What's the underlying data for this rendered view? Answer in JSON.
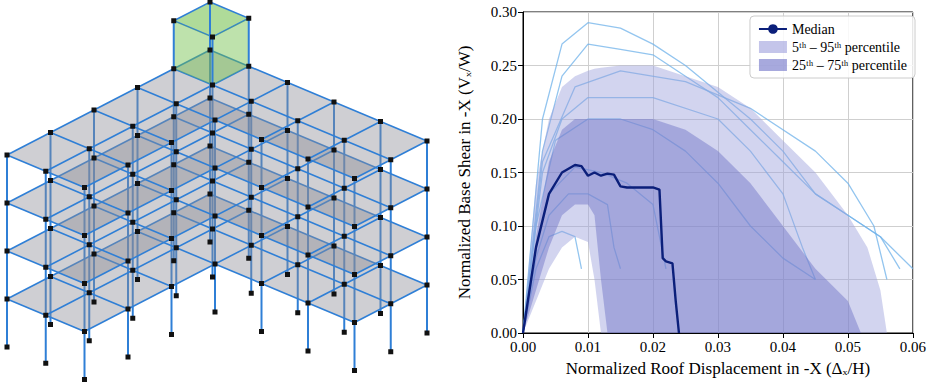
{
  "chart_data": {
    "type": "line",
    "xlabel": "Normalized Roof Displacement in -X (Δₓ/H)",
    "ylabel": "Normalized Base Shear in -X (Vₓ/W)",
    "xlim": [
      0,
      0.06
    ],
    "ylim": [
      0,
      0.3
    ],
    "xticks": [
      {
        "value": 0,
        "label": "0.00"
      },
      {
        "value": 0.01,
        "label": "0.01"
      },
      {
        "value": 0.02,
        "label": "0.02"
      },
      {
        "value": 0.03,
        "label": "0.03"
      },
      {
        "value": 0.04,
        "label": "0.04"
      },
      {
        "value": 0.05,
        "label": "0.05"
      },
      {
        "value": 0.06,
        "label": "0.06"
      }
    ],
    "yticks": [
      {
        "value": 0,
        "label": "0.00"
      },
      {
        "value": 0.05,
        "label": "0.05"
      },
      {
        "value": 0.1,
        "label": "0.10"
      },
      {
        "value": 0.15,
        "label": "0.15"
      },
      {
        "value": 0.2,
        "label": "0.20"
      },
      {
        "value": 0.25,
        "label": "0.25"
      },
      {
        "value": 0.3,
        "label": "0.30"
      }
    ],
    "grid": true,
    "legend": "upper right",
    "series": [
      {
        "name": "Median",
        "type": "line",
        "color": "#0b1f7a",
        "x": [
          0,
          0.002,
          0.004,
          0.006,
          0.008,
          0.009,
          0.01,
          0.011,
          0.012,
          0.013,
          0.014,
          0.015,
          0.016,
          0.02,
          0.021,
          0.0215,
          0.022,
          0.023,
          0.0235,
          0.024
        ],
        "values": [
          0,
          0.08,
          0.13,
          0.15,
          0.157,
          0.156,
          0.147,
          0.15,
          0.147,
          0.149,
          0.148,
          0.137,
          0.136,
          0.136,
          0.134,
          0.07,
          0.067,
          0.065,
          0.03,
          0
        ]
      },
      {
        "name": "5ᵗʰ – 95ᵗʰ percentile",
        "type": "band",
        "color": "#9c9fdc",
        "x": [
          0,
          0.002,
          0.004,
          0.006,
          0.008,
          0.01,
          0.011,
          0.012,
          0.015,
          0.02,
          0.025,
          0.03,
          0.035,
          0.04,
          0.045,
          0.05,
          0.053,
          0.055,
          0.056
        ],
        "lower": [
          0,
          0.03,
          0.06,
          0.08,
          0.09,
          0.085,
          0.05,
          0,
          0,
          0,
          0,
          0,
          0,
          0,
          0,
          0,
          0,
          0,
          0
        ],
        "upper": [
          0,
          0.14,
          0.2,
          0.23,
          0.24,
          0.245,
          0.247,
          0.248,
          0.25,
          0.25,
          0.24,
          0.23,
          0.21,
          0.18,
          0.15,
          0.11,
          0.08,
          0.04,
          0
        ]
      },
      {
        "name": "25ᵗʰ – 75ᵗʰ percentile",
        "type": "band",
        "color": "#6d70c6",
        "x": [
          0,
          0.002,
          0.004,
          0.006,
          0.008,
          0.01,
          0.011,
          0.012,
          0.013,
          0.015,
          0.02,
          0.025,
          0.03,
          0.035,
          0.04,
          0.045,
          0.05,
          0.052
        ],
        "lower": [
          0,
          0.04,
          0.08,
          0.11,
          0.12,
          0.12,
          0.11,
          0.05,
          0,
          0,
          0,
          0,
          0,
          0,
          0,
          0,
          0,
          0
        ],
        "upper": [
          0,
          0.09,
          0.16,
          0.19,
          0.2,
          0.2,
          0.2,
          0.2,
          0.2,
          0.2,
          0.2,
          0.19,
          0.17,
          0.14,
          0.1,
          0.06,
          0.03,
          0
        ]
      },
      {
        "type": "line",
        "color": "#6fb1ea",
        "x": [
          0,
          0.003,
          0.006,
          0.01,
          0.015,
          0.02,
          0.025,
          0.03,
          0.035,
          0.04,
          0.045,
          0.05,
          0.055,
          0.058
        ],
        "values": [
          0,
          0.2,
          0.27,
          0.29,
          0.285,
          0.27,
          0.25,
          0.225,
          0.2,
          0.17,
          0.13,
          0.11,
          0.09,
          0.06
        ]
      },
      {
        "type": "line",
        "color": "#6fb1ea",
        "x": [
          0,
          0.003,
          0.006,
          0.01,
          0.015,
          0.02,
          0.025,
          0.03,
          0.035,
          0.04,
          0.045,
          0.05,
          0.055,
          0.06
        ],
        "values": [
          0,
          0.17,
          0.24,
          0.27,
          0.265,
          0.26,
          0.24,
          0.22,
          0.19,
          0.16,
          0.13,
          0.11,
          0.09,
          0.06
        ]
      },
      {
        "type": "line",
        "color": "#6fb1ea",
        "x": [
          0,
          0.002,
          0.005,
          0.01,
          0.015,
          0.02,
          0.025,
          0.03,
          0.035,
          0.04,
          0.045
        ],
        "values": [
          0,
          0.1,
          0.18,
          0.2,
          0.2,
          0.19,
          0.17,
          0.14,
          0.1,
          0.07,
          0.05
        ]
      },
      {
        "type": "line",
        "color": "#6fb1ea",
        "x": [
          0,
          0.002,
          0.004,
          0.008,
          0.012,
          0.016,
          0.02,
          0.022
        ],
        "values": [
          0,
          0.08,
          0.13,
          0.155,
          0.15,
          0.14,
          0.12,
          0.06
        ]
      },
      {
        "type": "line",
        "color": "#6fb1ea",
        "x": [
          0,
          0.002,
          0.004,
          0.006,
          0.008,
          0.009
        ],
        "values": [
          0,
          0.06,
          0.09,
          0.095,
          0.09,
          0.06
        ]
      },
      {
        "type": "line",
        "color": "#6fb1ea",
        "x": [
          0,
          0.003,
          0.006,
          0.01,
          0.02,
          0.03,
          0.035,
          0.04,
          0.043,
          0.045
        ],
        "values": [
          0,
          0.15,
          0.2,
          0.22,
          0.22,
          0.2,
          0.17,
          0.13,
          0.08,
          0.05
        ]
      },
      {
        "type": "line",
        "color": "#6fb1ea",
        "x": [
          0,
          0.003,
          0.008,
          0.015,
          0.025,
          0.035,
          0.045,
          0.05,
          0.054,
          0.056
        ],
        "values": [
          0,
          0.16,
          0.23,
          0.245,
          0.235,
          0.21,
          0.17,
          0.14,
          0.1,
          0.05
        ]
      },
      {
        "type": "line",
        "color": "#6fb1ea",
        "x": [
          0,
          0.002,
          0.004,
          0.007,
          0.01,
          0.013,
          0.014,
          0.015
        ],
        "values": [
          0,
          0.07,
          0.11,
          0.13,
          0.13,
          0.12,
          0.08,
          0.06
        ]
      }
    ]
  }
}
